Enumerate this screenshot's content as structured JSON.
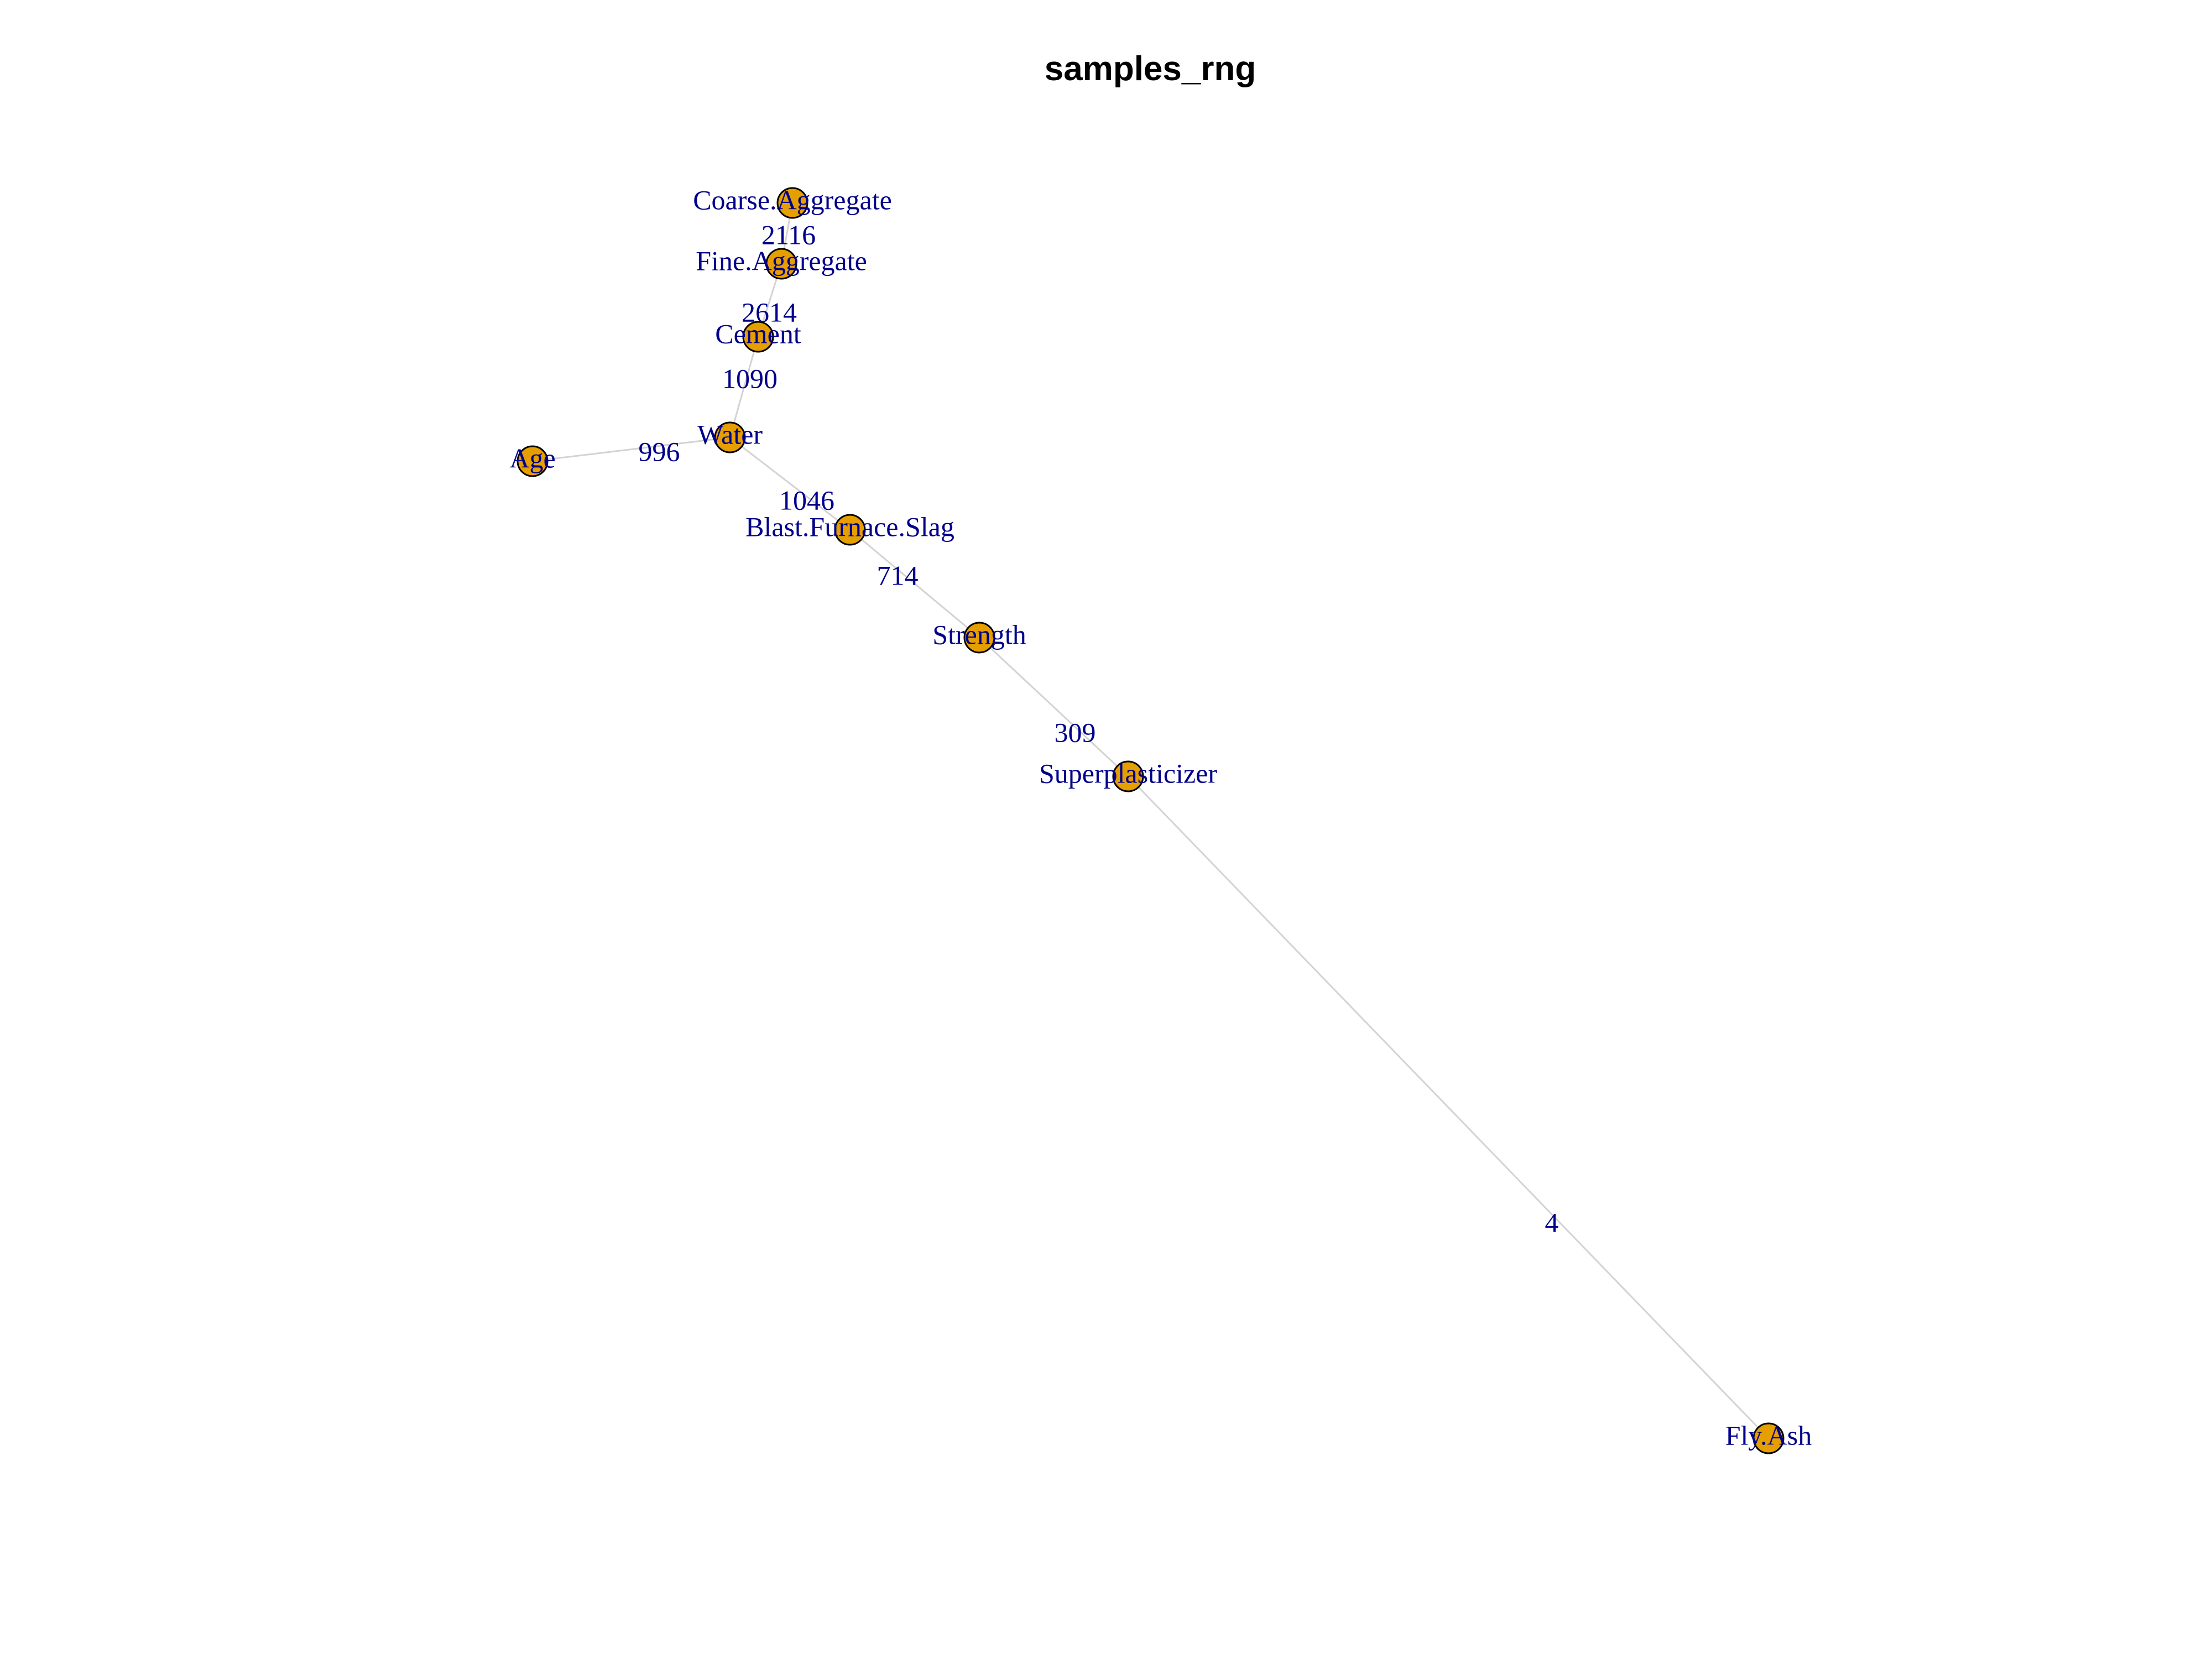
{
  "title": "samples_rng",
  "colors": {
    "node_fill": "#e69f00",
    "node_stroke": "#000000",
    "edge": "#d3d3d3",
    "label": "#00008b",
    "title": "#000000"
  },
  "nodes": [
    {
      "id": "coarse",
      "label": "Coarse.Aggregate"
    },
    {
      "id": "fine",
      "label": "Fine.Aggregate"
    },
    {
      "id": "cement",
      "label": "Cement"
    },
    {
      "id": "water",
      "label": "Water"
    },
    {
      "id": "age",
      "label": "Age"
    },
    {
      "id": "slag",
      "label": "Blast.Furnace.Slag"
    },
    {
      "id": "strength",
      "label": "Strength"
    },
    {
      "id": "super",
      "label": "Superplasticizer"
    },
    {
      "id": "flyash",
      "label": "Fly.Ash"
    }
  ],
  "edges": [
    {
      "source": "coarse",
      "target": "fine",
      "label": "2116"
    },
    {
      "source": "fine",
      "target": "cement",
      "label": "2614"
    },
    {
      "source": "cement",
      "target": "water",
      "label": "1090"
    },
    {
      "source": "age",
      "target": "water",
      "label": "996"
    },
    {
      "source": "water",
      "target": "slag",
      "label": "1046"
    },
    {
      "source": "slag",
      "target": "strength",
      "label": "714"
    },
    {
      "source": "strength",
      "target": "super",
      "label": "309"
    },
    {
      "source": "super",
      "target": "flyash",
      "label": "4"
    }
  ]
}
